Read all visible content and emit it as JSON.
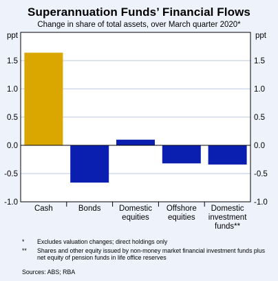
{
  "title": "Superannuation Funds’ Financial Flows",
  "subtitle": "Change in share of total assets, over March quarter 2020*",
  "y_unit": "ppt",
  "notes": [
    {
      "mark": "*",
      "text": "Excludes valuation changes; direct holdings only"
    },
    {
      "mark": "**",
      "text": "Shares and other equity issued by non-money market financial investment funds plus net equity of pension funds in life office reserves"
    }
  ],
  "sources": "Sources: ABS; RBA",
  "chart_data": {
    "type": "bar",
    "title": "Superannuation Funds’ Financial Flows",
    "subtitle": "Change in share of total assets, over March quarter 2020*",
    "ylabel": "ppt",
    "ylim": [
      -1.0,
      2.0
    ],
    "yticks": [
      -1.0,
      -0.5,
      0.0,
      0.5,
      1.0,
      1.5
    ],
    "ytick_labels": [
      "-1.0",
      "-0.5",
      "0.0",
      "0.5",
      "1.0",
      "1.5"
    ],
    "categories": [
      [
        "Cash"
      ],
      [
        "Bonds"
      ],
      [
        "Domestic",
        "equities"
      ],
      [
        "Offshore",
        "equities"
      ],
      [
        "Domestic",
        "investment",
        "funds**"
      ]
    ],
    "values": [
      1.64,
      -0.66,
      0.1,
      -0.32,
      -0.34
    ],
    "colors": [
      "#d9a700",
      "#0a1fb0",
      "#0a1fb0",
      "#0a1fb0",
      "#0a1fb0"
    ],
    "grid": true,
    "grid_color": "#b8c4df",
    "plot_background": "#ffffff"
  }
}
